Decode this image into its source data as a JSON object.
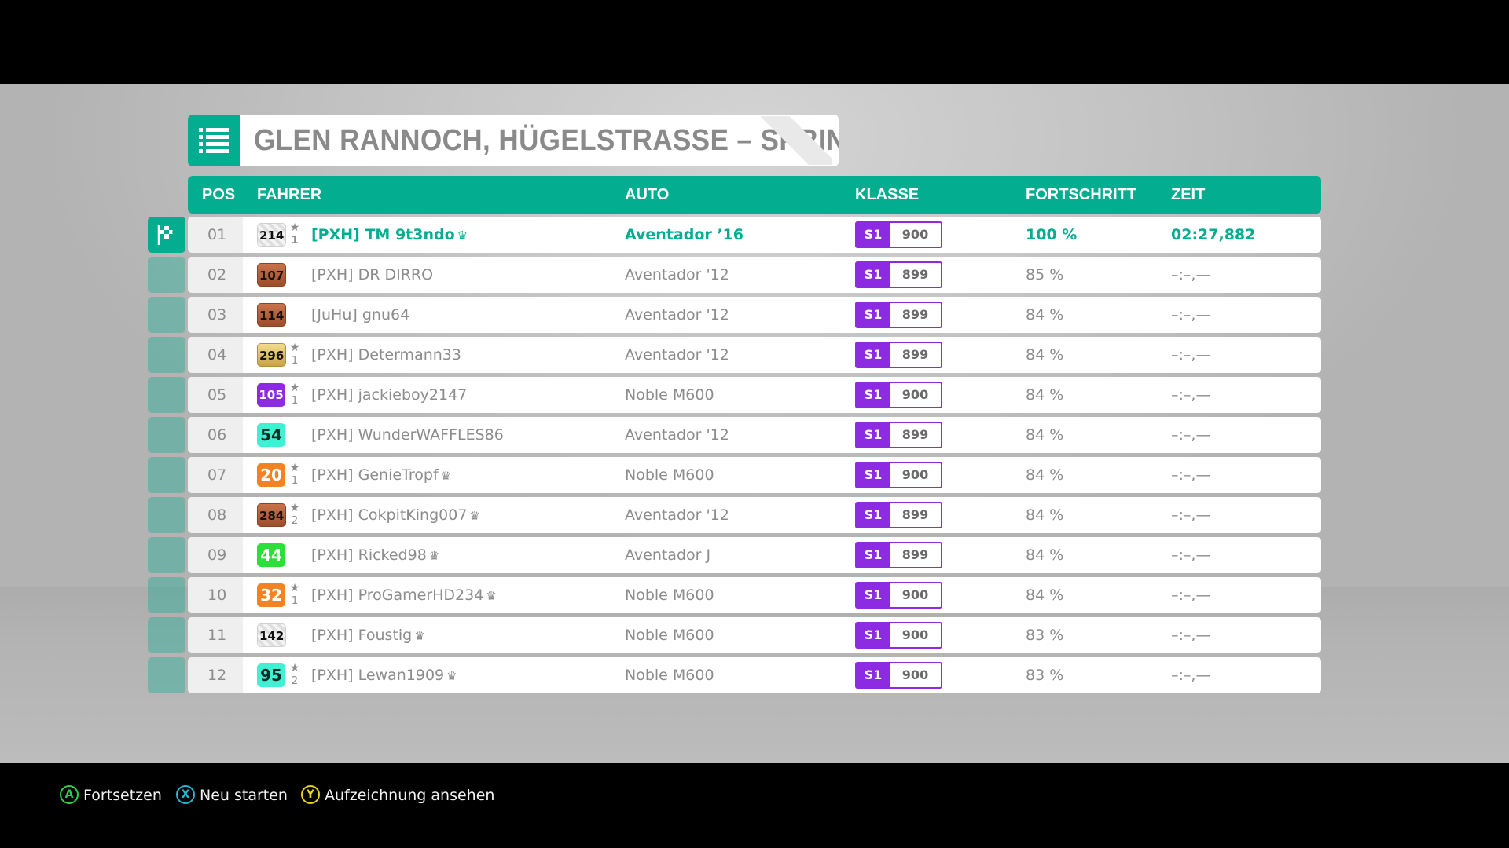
{
  "title": "GLEN RANNOCH, HÜGELSTRASSE – SPRINT",
  "header": {
    "pos": "POS",
    "driver": "FAHRER",
    "car": "AUTO",
    "class": "KLASSE",
    "progress": "FORTSCHRITT",
    "time": "ZEIT"
  },
  "colors": {
    "accent": "#03ad8f",
    "class_purple": "#8d2be2",
    "text_grey": "#8c8c8c"
  },
  "rows": [
    {
      "pos": "01",
      "level": "214",
      "level_style": "white",
      "stars": "1",
      "driver": "[PXH] TM 9t3ndo",
      "crown": true,
      "car": "Aventador ’16",
      "class": "S1",
      "rating": "900",
      "progress": "100 %",
      "time": "02:27,882",
      "player": true
    },
    {
      "pos": "02",
      "level": "107",
      "level_style": "copper",
      "stars": "",
      "driver": "[PXH] DR DIRRO",
      "crown": false,
      "car": "Aventador '12",
      "class": "S1",
      "rating": "899",
      "progress": "85 %",
      "time": "–:–,—",
      "player": false
    },
    {
      "pos": "03",
      "level": "114",
      "level_style": "copper",
      "stars": "",
      "driver": "[JuHu] gnu64",
      "crown": false,
      "car": "Aventador '12",
      "class": "S1",
      "rating": "899",
      "progress": "84 %",
      "time": "–:–,—",
      "player": false
    },
    {
      "pos": "04",
      "level": "296",
      "level_style": "gold",
      "stars": "1",
      "driver": "[PXH] Determann33",
      "crown": false,
      "car": "Aventador '12",
      "class": "S1",
      "rating": "899",
      "progress": "84 %",
      "time": "–:–,—",
      "player": false
    },
    {
      "pos": "05",
      "level": "105",
      "level_style": "purple",
      "stars": "1",
      "driver": "[PXH] jackieboy2147",
      "crown": false,
      "car": "Noble M600",
      "class": "S1",
      "rating": "900",
      "progress": "84 %",
      "time": "–:–,—",
      "player": false
    },
    {
      "pos": "06",
      "level": "54",
      "level_style": "teal",
      "stars": "",
      "driver": "[PXH] WunderWAFFLES86",
      "crown": false,
      "car": "Aventador '12",
      "class": "S1",
      "rating": "899",
      "progress": "84 %",
      "time": "–:–,—",
      "player": false
    },
    {
      "pos": "07",
      "level": "20",
      "level_style": "orange",
      "stars": "1",
      "driver": "[PXH] GenieTropf",
      "crown": true,
      "car": "Noble M600",
      "class": "S1",
      "rating": "900",
      "progress": "84 %",
      "time": "–:–,—",
      "player": false
    },
    {
      "pos": "08",
      "level": "284",
      "level_style": "copper",
      "stars": "2",
      "driver": "[PXH] CokpitKing007",
      "crown": true,
      "car": "Aventador '12",
      "class": "S1",
      "rating": "899",
      "progress": "84 %",
      "time": "–:–,—",
      "player": false
    },
    {
      "pos": "09",
      "level": "44",
      "level_style": "green",
      "stars": "",
      "driver": "[PXH] Ricked98",
      "crown": true,
      "car": "Aventador J",
      "class": "S1",
      "rating": "899",
      "progress": "84 %",
      "time": "–:–,—",
      "player": false
    },
    {
      "pos": "10",
      "level": "32",
      "level_style": "orange",
      "stars": "1",
      "driver": "[PXH] ProGamerHD234",
      "crown": true,
      "car": "Noble M600",
      "class": "S1",
      "rating": "900",
      "progress": "84 %",
      "time": "–:–,—",
      "player": false
    },
    {
      "pos": "11",
      "level": "142",
      "level_style": "white",
      "stars": "",
      "driver": "[PXH] Foustig",
      "crown": true,
      "car": "Noble M600",
      "class": "S1",
      "rating": "900",
      "progress": "83 %",
      "time": "–:–,—",
      "player": false
    },
    {
      "pos": "12",
      "level": "95",
      "level_style": "teal",
      "stars": "2",
      "driver": "[PXH] Lewan1909",
      "crown": true,
      "car": "Noble M600",
      "class": "S1",
      "rating": "900",
      "progress": "83 %",
      "time": "–:–,—",
      "player": false
    }
  ],
  "prompts": [
    {
      "key": "A",
      "label": "Fortsetzen",
      "color": "#2bd04a"
    },
    {
      "key": "X",
      "label": "Neu starten",
      "color": "#26b6d6"
    },
    {
      "key": "Y",
      "label": "Aufzeichnung ansehen",
      "color": "#e6d31d"
    }
  ],
  "icons": {
    "title": "list-icon",
    "player_marker": "checkered-flag-icon",
    "star": "star-icon",
    "crown": "crown-icon"
  }
}
